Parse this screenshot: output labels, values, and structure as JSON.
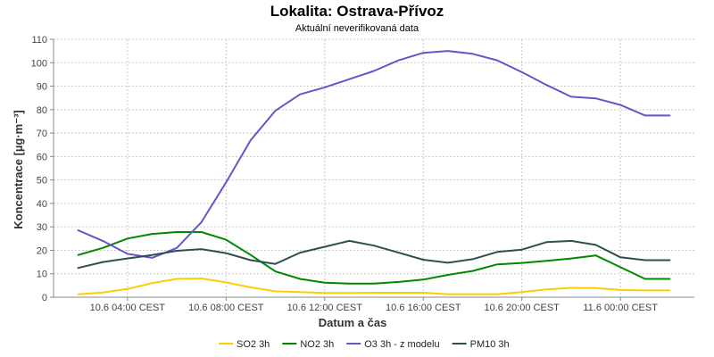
{
  "chart_data": {
    "type": "line",
    "title": "Lokalita: Ostrava-Přívoz",
    "subtitle": "Aktuální neverifikovaná data",
    "xlabel": "Datum a čas",
    "ylabel": "Koncentrace [µg·m⁻³]",
    "ylim": [
      0,
      110
    ],
    "yticks": [
      0,
      10,
      20,
      30,
      40,
      50,
      60,
      70,
      80,
      90,
      100,
      110
    ],
    "xlim": [
      "10.6 01:00",
      "11.6 03:00"
    ],
    "xticks": [
      {
        "value": "10.6 04:00",
        "label": "10.6 04:00 CEST"
      },
      {
        "value": "10.6 08:00",
        "label": "10.6 08:00 CEST"
      },
      {
        "value": "10.6 12:00",
        "label": "10.6 12:00 CEST"
      },
      {
        "value": "10.6 16:00",
        "label": "10.6 16:00 CEST"
      },
      {
        "value": "10.6 20:00",
        "label": "10.6 20:00 CEST"
      },
      {
        "value": "11.6 00:00",
        "label": "11.6 00:00 CEST"
      }
    ],
    "x": [
      "10.6 02:00",
      "10.6 03:00",
      "10.6 04:00",
      "10.6 05:00",
      "10.6 06:00",
      "10.6 07:00",
      "10.6 08:00",
      "10.6 09:00",
      "10.6 10:00",
      "10.6 11:00",
      "10.6 12:00",
      "10.6 13:00",
      "10.6 14:00",
      "10.6 15:00",
      "10.6 16:00",
      "10.6 17:00",
      "10.6 18:00",
      "10.6 19:00",
      "10.6 20:00",
      "10.6 21:00",
      "10.6 22:00",
      "10.6 23:00",
      "11.6 00:00",
      "11.6 01:00",
      "11.6 02:00"
    ],
    "grid": true,
    "legend_position": "bottom",
    "series": [
      {
        "name": "SO2 3h",
        "color": "#ffcc00",
        "values": [
          1.2,
          2.0,
          3.5,
          6.0,
          7.8,
          8.0,
          6.3,
          4.2,
          2.5,
          2.2,
          1.8,
          1.8,
          1.9,
          1.9,
          1.9,
          1.3,
          1.3,
          1.3,
          2.2,
          3.3,
          4.0,
          3.9,
          3.1,
          2.9,
          2.9
        ]
      },
      {
        "name": "NO2 3h",
        "color": "#008800",
        "values": [
          18.0,
          21.0,
          25.0,
          27.0,
          27.8,
          27.8,
          24.5,
          18.0,
          11.0,
          7.8,
          6.2,
          5.8,
          5.8,
          6.5,
          7.5,
          9.5,
          11.2,
          14.0,
          14.6,
          15.5,
          16.5,
          17.8,
          12.8,
          7.8,
          7.8
        ]
      },
      {
        "name": "O3 3h - z modelu",
        "color": "#6a54c8",
        "values": [
          28.5,
          24.0,
          18.5,
          16.8,
          21.0,
          32.0,
          49.0,
          67.0,
          79.5,
          86.5,
          89.5,
          93.0,
          96.5,
          101.0,
          104.2,
          105.0,
          103.8,
          101.0,
          96.0,
          90.5,
          85.5,
          84.8,
          82.0,
          77.5,
          77.5
        ]
      },
      {
        "name": "PM10 3h",
        "color": "#2f4f4f",
        "values": [
          12.5,
          15.0,
          16.5,
          18.0,
          19.8,
          20.5,
          18.8,
          15.8,
          14.2,
          19.0,
          21.5,
          24.0,
          22.0,
          19.0,
          16.0,
          14.7,
          16.2,
          19.3,
          20.3,
          23.5,
          24.0,
          22.3,
          17.0,
          15.8,
          15.8
        ]
      }
    ]
  }
}
